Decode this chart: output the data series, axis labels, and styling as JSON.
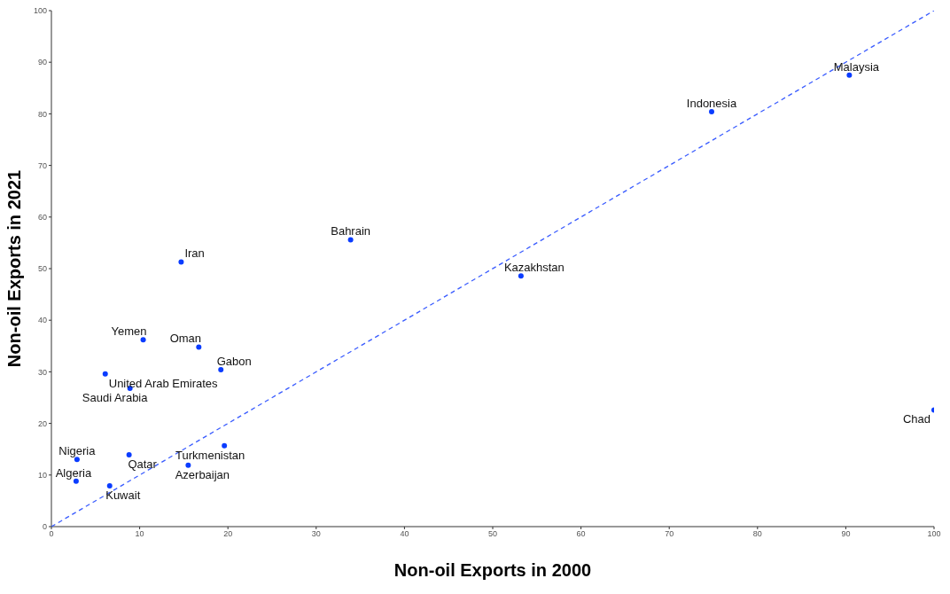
{
  "chart_data": {
    "type": "scatter",
    "xlabel": "Non-oil Exports in 2000",
    "ylabel": "Non-oil Exports in 2021",
    "xlim": [
      0,
      100
    ],
    "ylim": [
      0,
      100
    ],
    "xticks": [
      0,
      10,
      20,
      30,
      40,
      50,
      60,
      70,
      80,
      90,
      100
    ],
    "yticks": [
      0,
      10,
      20,
      30,
      40,
      50,
      60,
      70,
      80,
      90,
      100
    ],
    "grid": false,
    "marker": "circle",
    "series": [
      {
        "color": "#0a3cff",
        "x": [
          2.8,
          2.9,
          6.6,
          8.8,
          6.1,
          8.9,
          10.4,
          16.7,
          19.2,
          14.7,
          15.5,
          19.6,
          33.9,
          53.2,
          74.8,
          90.4,
          100
        ],
        "values": [
          8.8,
          13.0,
          7.9,
          13.9,
          29.6,
          26.8,
          36.2,
          34.8,
          30.4,
          51.3,
          11.9,
          15.7,
          55.6,
          48.6,
          80.4,
          87.5,
          22.6
        ]
      },
      {
        "type": "line",
        "color": "#3a5cff",
        "line_style": "dashed",
        "marker": "none",
        "x": [
          0,
          100
        ],
        "values": [
          0,
          100
        ]
      }
    ],
    "annotations": [
      {
        "text": "Algeria",
        "x": 2.8,
        "y": 8.8
      },
      {
        "text": "Nigeria",
        "x": 2.9,
        "y": 13.0
      },
      {
        "text": "Kuwait",
        "x": 6.6,
        "y": 7.9
      },
      {
        "text": "Qatar",
        "x": 8.8,
        "y": 13.9
      },
      {
        "text": "United Arab Emirates",
        "x": 6.1,
        "y": 29.6
      },
      {
        "text": "Saudi Arabia",
        "x": 8.9,
        "y": 26.8
      },
      {
        "text": "Yemen",
        "x": 10.4,
        "y": 36.2
      },
      {
        "text": "Oman",
        "x": 16.7,
        "y": 34.8
      },
      {
        "text": "Gabon",
        "x": 19.2,
        "y": 30.4
      },
      {
        "text": "Iran",
        "x": 14.7,
        "y": 51.3
      },
      {
        "text": "Azerbaijan",
        "x": 15.5,
        "y": 11.9
      },
      {
        "text": "Turkmenistan",
        "x": 19.6,
        "y": 15.7
      },
      {
        "text": "Bahrain",
        "x": 33.9,
        "y": 55.6
      },
      {
        "text": "Kazakhstan",
        "x": 53.2,
        "y": 48.6
      },
      {
        "text": "Indonesia",
        "x": 74.8,
        "y": 80.4
      },
      {
        "text": "Malaysia",
        "x": 90.4,
        "y": 87.5
      },
      {
        "text": "Chad",
        "x": 100,
        "y": 22.6
      }
    ]
  }
}
